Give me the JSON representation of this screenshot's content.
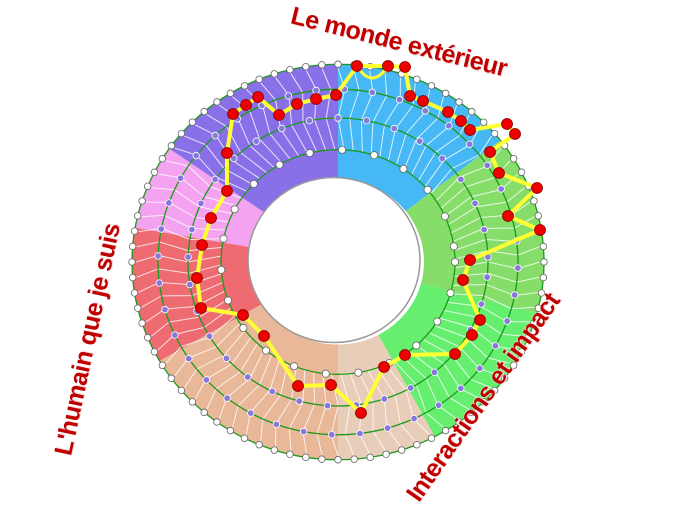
{
  "labels": {
    "top": "Le monde extérieur",
    "left": "L'humain que je suis",
    "bottom": "Interactions et impact"
  },
  "colors": {
    "label": "#c00000",
    "path": "#ffff33",
    "path_node": "#ee0000",
    "ring_node": "#8877dd",
    "ring_line": "#1a9a1a"
  },
  "sectors": [
    {
      "name": "blue",
      "color": "#45b8f5"
    },
    {
      "name": "light-green",
      "color": "#86dd6a"
    },
    {
      "name": "green",
      "color": "#66ee6e"
    },
    {
      "name": "light-tan",
      "color": "#e8cdb8"
    },
    {
      "name": "tan",
      "color": "#e8b898"
    },
    {
      "name": "red",
      "color": "#ee6b72"
    },
    {
      "name": "pink",
      "color": "#f3a3f0"
    },
    {
      "name": "purple",
      "color": "#8a70e8"
    }
  ]
}
